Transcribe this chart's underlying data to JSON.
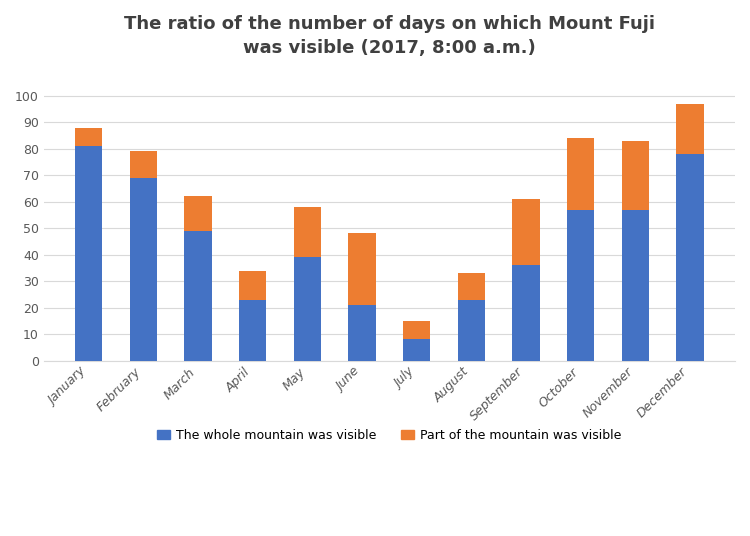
{
  "title": "The ratio of the number of days on which Mount Fuji\nwas visible (2017, 8:00 a.m.)",
  "months": [
    "January",
    "February",
    "March",
    "April",
    "May",
    "June",
    "July",
    "August",
    "September",
    "October",
    "November",
    "December"
  ],
  "whole_visible": [
    81,
    69,
    49,
    23,
    39,
    21,
    8,
    23,
    36,
    57,
    57,
    78
  ],
  "partial_visible": [
    7,
    10,
    13,
    11,
    19,
    27,
    7,
    10,
    25,
    27,
    26,
    19
  ],
  "color_whole": "#4472C4",
  "color_partial": "#ED7D31",
  "ylim": [
    0,
    110
  ],
  "yticks": [
    0,
    10,
    20,
    30,
    40,
    50,
    60,
    70,
    80,
    90,
    100
  ],
  "legend_whole": "The whole mountain was visible",
  "legend_partial": "Part of the mountain was visible",
  "title_fontsize": 13,
  "title_color": "#404040",
  "tick_color": "#595959",
  "background_color": "#FFFFFF",
  "grid_color": "#D9D9D9",
  "bar_width": 0.5,
  "figsize": [
    7.5,
    5.36
  ],
  "dpi": 100
}
